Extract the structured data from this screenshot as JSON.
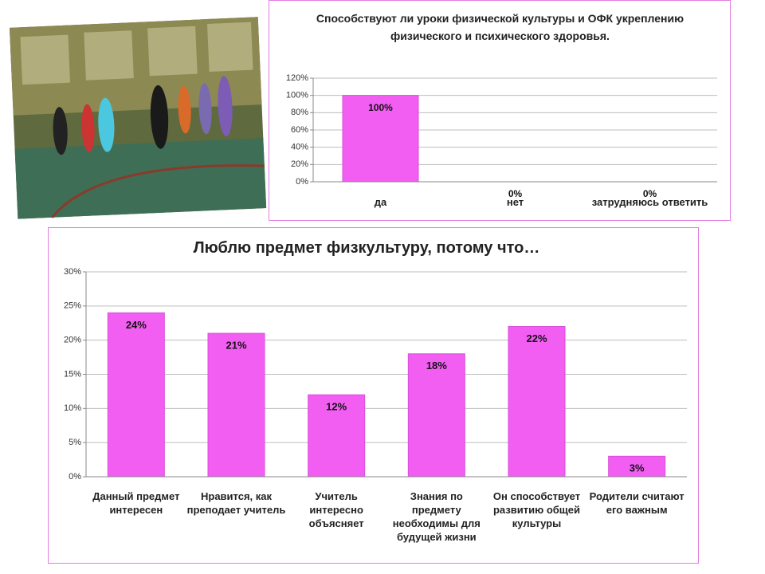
{
  "chart_data": [
    {
      "type": "bar",
      "title": "Способствуют ли уроки физической культуры и ОФК укреплению физического и психического здоровья.",
      "categories": [
        "да",
        "нет",
        "затрудняюсь ответить"
      ],
      "values": [
        100,
        0,
        0
      ],
      "value_labels": [
        "100%",
        "0%",
        "0%"
      ],
      "color": "#f25ef2",
      "ylim": [
        0,
        120
      ],
      "yticks": [
        {
          "value": 0,
          "label": "0%"
        },
        {
          "value": 20,
          "label": "20%"
        },
        {
          "value": 40,
          "label": "40%"
        },
        {
          "value": 60,
          "label": "60%"
        },
        {
          "value": 80,
          "label": "80%"
        },
        {
          "value": 100,
          "label": "100%"
        },
        {
          "value": 120,
          "label": "120%"
        }
      ],
      "grid": true
    },
    {
      "type": "bar",
      "title": "Люблю предмет физкультуру, потому что…",
      "categories": [
        "Данный предмет интересен",
        "Нравится, как преподает учитель",
        "Учитель интересно объясняет",
        "Знания по предмету необходимы для будущей жизни",
        "Он способствует развитию общей культуры",
        "Родители считают его важным"
      ],
      "values": [
        24,
        21,
        12,
        18,
        22,
        3
      ],
      "value_labels": [
        "24%",
        "21%",
        "12%",
        "18%",
        "22%",
        "3%"
      ],
      "color": "#f25ef2",
      "ylim": [
        0,
        30
      ],
      "yticks": [
        {
          "value": 0,
          "label": "0%"
        },
        {
          "value": 5,
          "label": "5%"
        },
        {
          "value": 10,
          "label": "10%"
        },
        {
          "value": 15,
          "label": "15%"
        },
        {
          "value": 20,
          "label": "20%"
        },
        {
          "value": 25,
          "label": "25%"
        },
        {
          "value": 30,
          "label": "30%"
        }
      ],
      "grid": true
    }
  ]
}
